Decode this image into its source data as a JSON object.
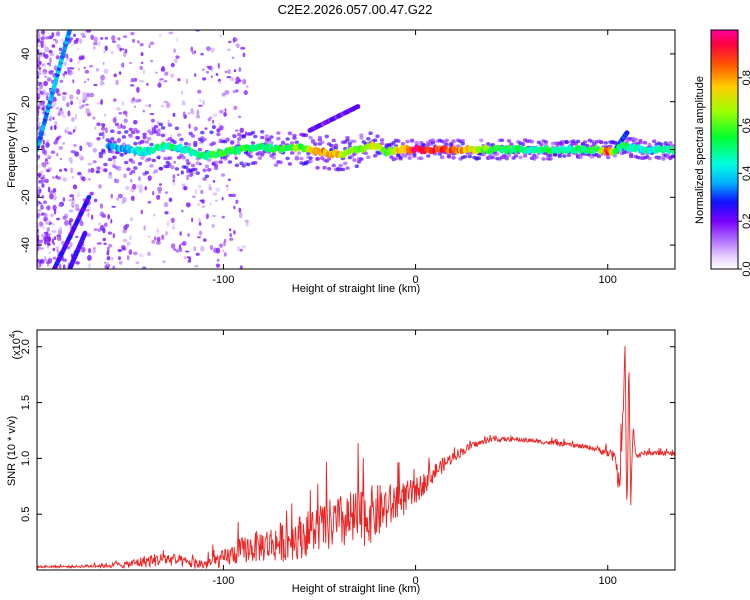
{
  "title": "C2E2.2026.057.00.47.G22",
  "chart_data": [
    {
      "type": "heatmap",
      "title": "C2E2.2026.057.00.47.G22",
      "xlabel": "Height of straight line (km)",
      "ylabel": "Frequency (Hz)",
      "xlim": [
        -197,
        135
      ],
      "ylim": [
        -50,
        50
      ],
      "xticks": [
        "-100",
        "0",
        "100"
      ],
      "xtick_values": [
        -100,
        0,
        100
      ],
      "yticks": [
        "-40",
        "-20",
        "0",
        "20",
        "40"
      ],
      "ytick_values": [
        -40,
        -20,
        0,
        20,
        40
      ],
      "colorbar": {
        "label": "Normalized spectral amplitude",
        "range": [
          0,
          1
        ],
        "ticks": [
          "0.0",
          "0.2",
          "0.4",
          "0.6",
          "0.8"
        ],
        "tick_values": [
          0.0,
          0.2,
          0.4,
          0.6,
          0.8
        ]
      },
      "ridge": {
        "x": [
          -160,
          -150,
          -140,
          -130,
          -120,
          -110,
          -100,
          -90,
          -80,
          -70,
          -60,
          -50,
          -40,
          -30,
          -25,
          -20,
          -15,
          -10,
          0,
          10,
          20,
          40,
          60,
          80,
          95,
          100,
          105,
          108,
          110,
          120,
          135
        ],
        "freq": [
          1,
          0,
          -1,
          2,
          0,
          -3,
          -1,
          0,
          1,
          0,
          1,
          -1,
          -2,
          0,
          1,
          2,
          -1,
          0,
          0,
          0,
          0,
          0,
          0,
          0,
          0,
          -1,
          0,
          2,
          1,
          0,
          0
        ],
        "amplitude": [
          0.35,
          0.4,
          0.45,
          0.5,
          0.45,
          0.5,
          0.55,
          0.55,
          0.5,
          0.55,
          0.6,
          0.8,
          0.75,
          0.6,
          0.7,
          0.75,
          0.6,
          0.7,
          0.95,
          0.9,
          0.85,
          0.55,
          0.5,
          0.5,
          0.55,
          0.9,
          0.5,
          0.55,
          0.5,
          0.45,
          0.45
        ]
      },
      "sidebands": [
        {
          "x": [
            -197,
            -180
          ],
          "freq": [
            0,
            50
          ],
          "amplitude": 0.35
        },
        {
          "x": [
            -188,
            -170
          ],
          "freq": [
            -50,
            -20
          ],
          "amplitude": 0.25
        },
        {
          "x": [
            -180,
            -172
          ],
          "freq": [
            -50,
            -35
          ],
          "amplitude": 0.25
        },
        {
          "x": [
            -55,
            -30
          ],
          "freq": [
            8,
            18
          ],
          "amplitude": 0.2
        },
        {
          "x": [
            104,
            110
          ],
          "freq": [
            0,
            7
          ],
          "amplitude": 0.3
        }
      ]
    },
    {
      "type": "line",
      "xlabel": "Height of straight line (km)",
      "ylabel": "SNR (10 * v/v)",
      "y_multiplier_label": "(x10",
      "y_multiplier_exponent": "4",
      "xlim": [
        -197,
        135
      ],
      "ylim": [
        0,
        2.15
      ],
      "xticks": [
        "-100",
        "0",
        "100"
      ],
      "xtick_values": [
        -100,
        0,
        100
      ],
      "yticks": [
        "0.5",
        "1.0",
        "1.5",
        "2.0"
      ],
      "ytick_values": [
        0.5,
        1.0,
        1.5,
        2.0
      ],
      "color": "#ee2222",
      "series": [
        {
          "name": "SNR",
          "x": [
            -197,
            -180,
            -160,
            -150,
            -140,
            -130,
            -120,
            -110,
            -100,
            -90,
            -80,
            -70,
            -60,
            -50,
            -40,
            -30,
            -20,
            -10,
            0,
            10,
            20,
            30,
            40,
            50,
            60,
            70,
            80,
            90,
            95,
            100,
            104,
            106,
            108,
            109,
            110,
            111,
            112,
            113,
            115,
            120,
            135
          ],
          "y": [
            0.03,
            0.03,
            0.04,
            0.05,
            0.08,
            0.1,
            0.07,
            0.05,
            0.1,
            0.18,
            0.22,
            0.25,
            0.3,
            0.38,
            0.42,
            0.45,
            0.52,
            0.6,
            0.7,
            0.88,
            1.02,
            1.12,
            1.17,
            1.17,
            1.16,
            1.14,
            1.12,
            1.1,
            1.08,
            1.05,
            1.0,
            0.75,
            1.35,
            2.05,
            0.3,
            1.95,
            0.55,
            1.25,
            1.02,
            1.05,
            1.04
          ],
          "noise_amplitude": [
            0.01,
            0.01,
            0.02,
            0.03,
            0.06,
            0.06,
            0.05,
            0.05,
            0.08,
            0.12,
            0.15,
            0.18,
            0.2,
            0.22,
            0.25,
            0.28,
            0.25,
            0.18,
            0.12,
            0.08,
            0.05,
            0.03,
            0.02,
            0.02,
            0.02,
            0.02,
            0.02,
            0.02,
            0.03,
            0.04,
            0.06,
            0.1,
            0.15,
            0.1,
            0.1,
            0.1,
            0.1,
            0.06,
            0.03,
            0.02,
            0.02
          ]
        }
      ]
    }
  ]
}
